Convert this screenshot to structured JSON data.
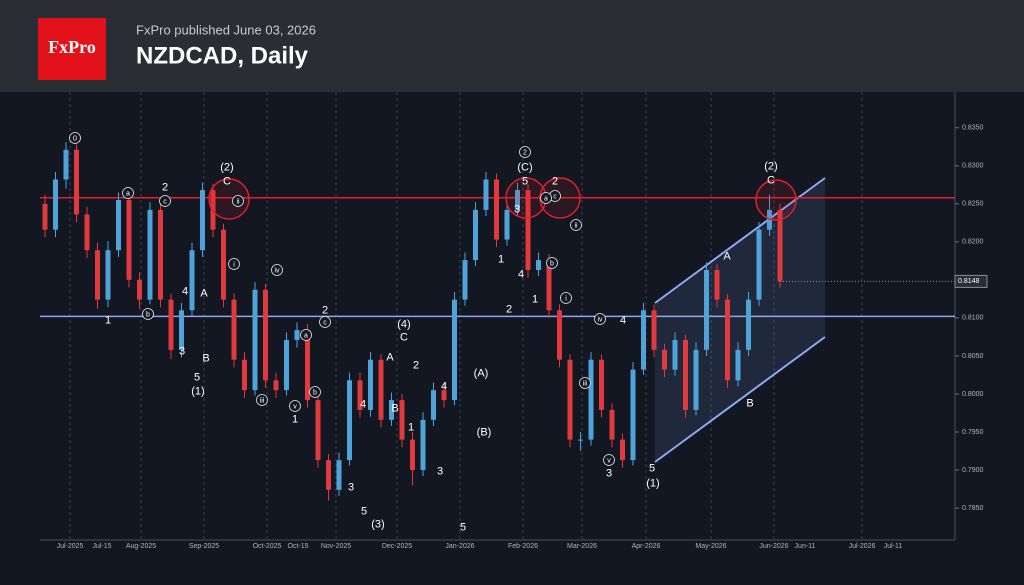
{
  "header": {
    "logo": "FxPro",
    "publisher": "FxPro published June 03, 2026",
    "title": "NZDCAD, Daily"
  },
  "chart_data": {
    "type": "candlestick",
    "up_color": "#4fa3d9",
    "down_color": "#e0393e",
    "ohlc": [
      [
        0.825,
        0.8262,
        0.8206,
        0.8216
      ],
      [
        0.8216,
        0.8292,
        0.8206,
        0.8282
      ],
      [
        0.8282,
        0.8331,
        0.827,
        0.8321
      ],
      [
        0.8321,
        0.8328,
        0.8226,
        0.8236
      ],
      [
        0.8236,
        0.8246,
        0.8179,
        0.8189
      ],
      [
        0.8189,
        0.8199,
        0.8112,
        0.8124
      ],
      [
        0.8124,
        0.8201,
        0.8114,
        0.8189
      ],
      [
        0.8189,
        0.8265,
        0.818,
        0.8255
      ],
      [
        0.8255,
        0.8262,
        0.814,
        0.815
      ],
      [
        0.815,
        0.816,
        0.8112,
        0.8124
      ],
      [
        0.8124,
        0.8252,
        0.8118,
        0.8242
      ],
      [
        0.8242,
        0.825,
        0.8114,
        0.8124
      ],
      [
        0.8124,
        0.8132,
        0.8046,
        0.8058
      ],
      [
        0.8058,
        0.812,
        0.8048,
        0.811
      ],
      [
        0.811,
        0.8199,
        0.8102,
        0.8189
      ],
      [
        0.8189,
        0.8278,
        0.818,
        0.8268
      ],
      [
        0.8268,
        0.8276,
        0.8206,
        0.8216
      ],
      [
        0.8216,
        0.8224,
        0.8114,
        0.8124
      ],
      [
        0.8124,
        0.8132,
        0.8035,
        0.8045
      ],
      [
        0.8045,
        0.8055,
        0.7995,
        0.8005
      ],
      [
        0.8005,
        0.8147,
        0.7998,
        0.8137
      ],
      [
        0.8137,
        0.8145,
        0.8008,
        0.8018
      ],
      [
        0.8018,
        0.8028,
        0.7995,
        0.8005
      ],
      [
        0.8005,
        0.8081,
        0.7998,
        0.8071
      ],
      [
        0.8071,
        0.8094,
        0.8061,
        0.8084
      ],
      [
        0.8084,
        0.8092,
        0.7982,
        0.7992
      ],
      [
        0.7992,
        0.8,
        0.7903,
        0.7913
      ],
      [
        0.7913,
        0.7921,
        0.786,
        0.7874
      ],
      [
        0.7874,
        0.7923,
        0.7866,
        0.7913
      ],
      [
        0.7913,
        0.8028,
        0.7906,
        0.8018
      ],
      [
        0.8018,
        0.8028,
        0.7969,
        0.7979
      ],
      [
        0.7979,
        0.8055,
        0.797,
        0.8045
      ],
      [
        0.8045,
        0.8052,
        0.7956,
        0.7966
      ],
      [
        0.7966,
        0.8002,
        0.7958,
        0.7992
      ],
      [
        0.7992,
        0.8,
        0.793,
        0.794
      ],
      [
        0.794,
        0.795,
        0.788,
        0.79
      ],
      [
        0.79,
        0.7976,
        0.7892,
        0.7966
      ],
      [
        0.7966,
        0.8015,
        0.7958,
        0.8005
      ],
      [
        0.8005,
        0.8015,
        0.7982,
        0.7992
      ],
      [
        0.7992,
        0.8134,
        0.7985,
        0.8124
      ],
      [
        0.8124,
        0.8186,
        0.8116,
        0.8176
      ],
      [
        0.8176,
        0.8252,
        0.8168,
        0.8242
      ],
      [
        0.8242,
        0.8292,
        0.8234,
        0.8282
      ],
      [
        0.8282,
        0.829,
        0.8193,
        0.8203
      ],
      [
        0.8203,
        0.8252,
        0.8195,
        0.8242
      ],
      [
        0.8242,
        0.8278,
        0.8234,
        0.8268
      ],
      [
        0.8268,
        0.8276,
        0.8153,
        0.8163
      ],
      [
        0.8163,
        0.8186,
        0.8155,
        0.8176
      ],
      [
        0.8176,
        0.8184,
        0.81,
        0.811
      ],
      [
        0.811,
        0.8118,
        0.8035,
        0.8045
      ],
      [
        0.8045,
        0.8052,
        0.793,
        0.794
      ],
      [
        0.794,
        0.795,
        0.7925,
        0.794
      ],
      [
        0.794,
        0.8055,
        0.7932,
        0.8045
      ],
      [
        0.8045,
        0.8052,
        0.7969,
        0.7979
      ],
      [
        0.7979,
        0.7988,
        0.793,
        0.794
      ],
      [
        0.794,
        0.7948,
        0.7903,
        0.7913
      ],
      [
        0.7913,
        0.8042,
        0.7906,
        0.8032
      ],
      [
        0.8032,
        0.812,
        0.8025,
        0.811
      ],
      [
        0.811,
        0.8118,
        0.8048,
        0.8058
      ],
      [
        0.8058,
        0.8066,
        0.8022,
        0.8032
      ],
      [
        0.8032,
        0.8081,
        0.8024,
        0.8071
      ],
      [
        0.8071,
        0.8078,
        0.7969,
        0.7979
      ],
      [
        0.7979,
        0.8068,
        0.7972,
        0.8058
      ],
      [
        0.8058,
        0.8173,
        0.805,
        0.8163
      ],
      [
        0.8163,
        0.8171,
        0.8114,
        0.8124
      ],
      [
        0.8124,
        0.8131,
        0.8008,
        0.8018
      ],
      [
        0.8018,
        0.8068,
        0.801,
        0.8058
      ],
      [
        0.8058,
        0.8134,
        0.805,
        0.8124
      ],
      [
        0.8124,
        0.8226,
        0.8116,
        0.8216
      ],
      [
        0.8216,
        0.8262,
        0.8208,
        0.8242
      ],
      [
        0.8242,
        0.825,
        0.814,
        0.8148
      ]
    ],
    "ylim": [
      0.7808,
      0.8397
    ],
    "yticks": [
      {
        "value": 0.785,
        "label": "0.7850"
      },
      {
        "value": 0.79,
        "label": "0.7900"
      },
      {
        "value": 0.795,
        "label": "0.7950"
      },
      {
        "value": 0.8,
        "label": "0.8000"
      },
      {
        "value": 0.805,
        "label": "0.8050"
      },
      {
        "value": 0.81,
        "label": "0.8100"
      },
      {
        "value": 0.815,
        "label": "0.8150"
      },
      {
        "value": 0.82,
        "label": "0.8200"
      },
      {
        "value": 0.825,
        "label": "0.8250"
      },
      {
        "value": 0.83,
        "label": "0.8300"
      },
      {
        "value": 0.835,
        "label": "0.8350"
      }
    ],
    "xticks": [
      "Jul-2025",
      "Jul-15",
      "Aug-2025",
      "Sep-2025",
      "Oct-2025",
      "Oct-15",
      "Nov-2025",
      "Dec-2025",
      "Jan-2026",
      "Feb-2026",
      "Mar-2026",
      "Apr-2026",
      "May-2026",
      "Jun-2026",
      "Jun-11",
      "Jul-2026",
      "Jul-11"
    ],
    "last_price": 0.8148,
    "levels": [
      {
        "value": 0.8258,
        "color": "#e0202a"
      },
      {
        "value": 0.8102,
        "color": "#8fa8f0"
      }
    ],
    "annotations": [
      {
        "label": "0",
        "circled": true
      },
      {
        "label": "a",
        "circled": true
      },
      {
        "label": "2",
        "circled": false
      },
      {
        "label": "c",
        "circled": true
      },
      {
        "label": "b",
        "circled": true
      },
      {
        "label": "1",
        "circled": false
      },
      {
        "label": "4",
        "circled": false
      },
      {
        "label": "3",
        "circled": false
      },
      {
        "label": "A",
        "circled": false
      },
      {
        "label": "B",
        "circled": false
      },
      {
        "label": "5",
        "circled": false
      },
      {
        "label": "(1)",
        "circled": false
      },
      {
        "label": "(2)",
        "circled": false
      },
      {
        "label": "C",
        "circled": false
      },
      {
        "label": "ii",
        "circled": true
      },
      {
        "label": "i",
        "circled": true
      },
      {
        "label": "iv",
        "circled": true
      },
      {
        "label": "iii",
        "circled": true
      },
      {
        "label": "v",
        "circled": true
      },
      {
        "label": "1",
        "circled": false
      },
      {
        "label": "a",
        "circled": true
      },
      {
        "label": "b",
        "circled": true
      },
      {
        "label": "2",
        "circled": false
      },
      {
        "label": "c",
        "circled": true
      },
      {
        "label": "3",
        "circled": false
      },
      {
        "label": "4",
        "circled": false
      },
      {
        "label": "5",
        "circled": false
      },
      {
        "label": "(3)",
        "circled": false
      },
      {
        "label": "A",
        "circled": false
      },
      {
        "label": "B",
        "circled": false
      },
      {
        "label": "(4)",
        "circled": false
      },
      {
        "label": "C",
        "circled": false
      },
      {
        "label": "2",
        "circled": false
      },
      {
        "label": "1",
        "circled": false
      },
      {
        "label": "4",
        "circled": false
      },
      {
        "label": "3",
        "circled": false
      },
      {
        "label": "5",
        "circled": false
      },
      {
        "label": "(A)",
        "circled": false
      },
      {
        "label": "(B)",
        "circled": false
      },
      {
        "label": "1",
        "circled": false
      },
      {
        "label": "2",
        "circled": false
      },
      {
        "label": "3",
        "circled": false
      },
      {
        "label": "4",
        "circled": false
      },
      {
        "label": "5",
        "circled": false
      },
      {
        "label": "(C)",
        "circled": false
      },
      {
        "label": "2",
        "circled": true
      },
      {
        "label": "1",
        "circled": false
      },
      {
        "label": "b",
        "circled": true
      },
      {
        "label": "2",
        "circled": false
      },
      {
        "label": "c",
        "circled": true
      },
      {
        "label": "a",
        "circled": true
      },
      {
        "label": "ii",
        "circled": true
      },
      {
        "label": "i",
        "circled": true
      },
      {
        "label": "iv",
        "circled": true
      },
      {
        "label": "4",
        "circled": false
      },
      {
        "label": "iii",
        "circled": true
      },
      {
        "label": "v",
        "circled": true
      },
      {
        "label": "3",
        "circled": false
      },
      {
        "label": "5",
        "circled": false
      },
      {
        "label": "(1)",
        "circled": false
      },
      {
        "label": "A",
        "circled": false
      },
      {
        "label": "B",
        "circled": false
      },
      {
        "label": "(2)",
        "circled": false
      },
      {
        "label": "C",
        "circled": false
      }
    ]
  }
}
